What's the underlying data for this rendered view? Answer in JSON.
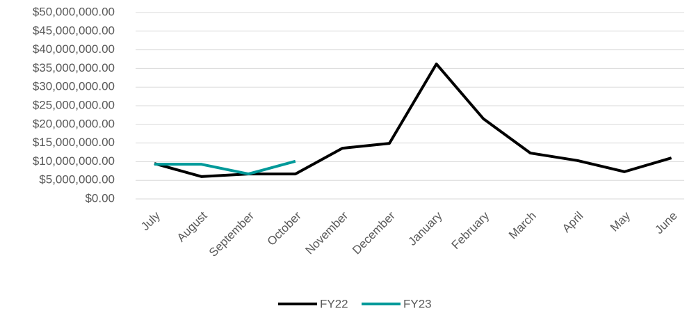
{
  "chart_data": {
    "type": "line",
    "categories": [
      "July",
      "August",
      "September",
      "October",
      "November",
      "December",
      "January",
      "February",
      "March",
      "April",
      "May",
      "June"
    ],
    "series": [
      {
        "name": "FY22",
        "color": "#000000",
        "values": [
          9500000,
          6000000,
          6700000,
          6700000,
          13600000,
          14900000,
          36200000,
          21500000,
          12300000,
          10300000,
          7300000,
          11000000
        ]
      },
      {
        "name": "FY23",
        "color": "#009999",
        "values": [
          9300000,
          9300000,
          6700000,
          10100000,
          null,
          null,
          null,
          null,
          null,
          null,
          null,
          null
        ]
      }
    ],
    "ylim": [
      0,
      50000000
    ],
    "yticks": [
      {
        "value": 0,
        "label": "$0.00"
      },
      {
        "value": 5000000,
        "label": "$5,000,000.00"
      },
      {
        "value": 10000000,
        "label": "$10,000,000.00"
      },
      {
        "value": 15000000,
        "label": "$15,000,000.00"
      },
      {
        "value": 20000000,
        "label": "$20,000,000.00"
      },
      {
        "value": 25000000,
        "label": "$25,000,000.00"
      },
      {
        "value": 30000000,
        "label": "$30,000,000.00"
      },
      {
        "value": 35000000,
        "label": "$35,000,000.00"
      },
      {
        "value": 40000000,
        "label": "$40,000,000.00"
      },
      {
        "value": 45000000,
        "label": "$45,000,000.00"
      },
      {
        "value": 50000000,
        "label": "$50,000,000.00"
      }
    ],
    "grid": true,
    "legend": "bottom"
  }
}
